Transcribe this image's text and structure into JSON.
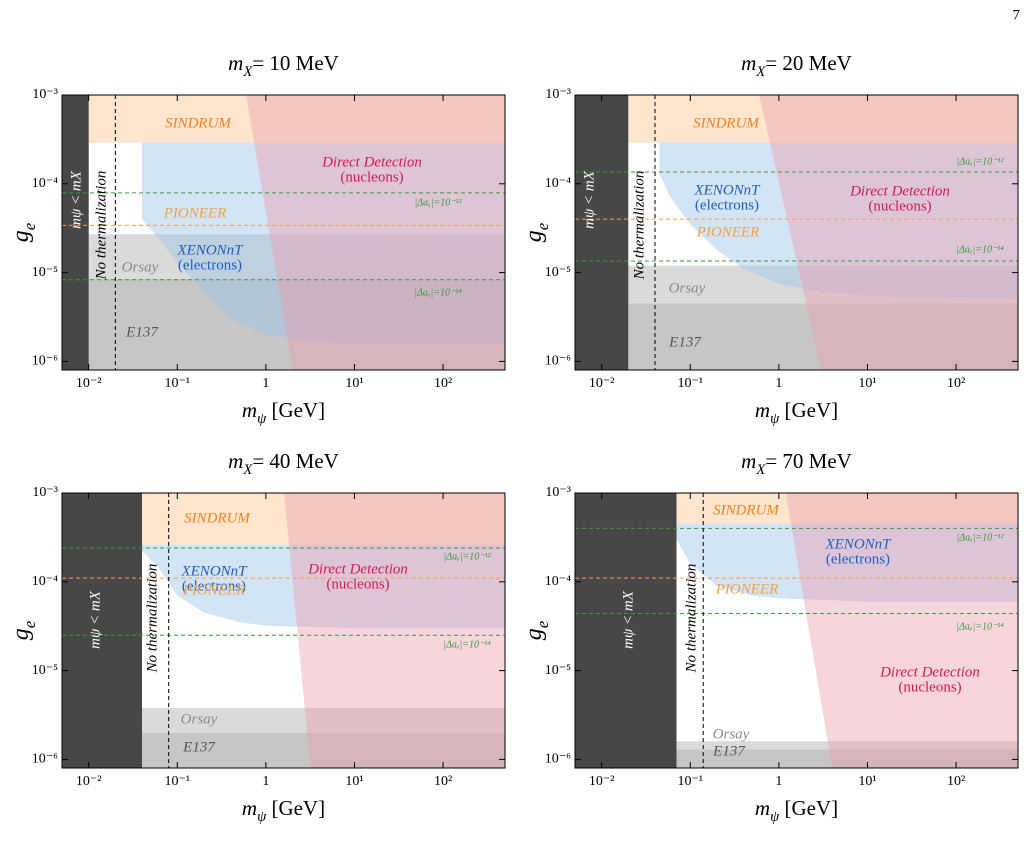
{
  "page_number": "7",
  "chart_data": [
    {
      "type": "area",
      "title": [
        "m",
        "X",
        "= 10 MeV"
      ],
      "xlabel": [
        "m",
        "ψ",
        " [GeV]"
      ],
      "ylabel": [
        "g",
        "e"
      ],
      "xscale": "log",
      "yscale": "log",
      "xlim": [
        0.005,
        500
      ],
      "ylim": [
        8e-07,
        0.001
      ],
      "xticks": [
        {
          "value": 0.01,
          "label": "10⁻²"
        },
        {
          "value": 0.1,
          "label": "10⁻¹"
        },
        1,
        {
          "value": 10,
          "label": "10¹"
        },
        {
          "value": 100,
          "label": "10²"
        }
      ],
      "yticks": [
        {
          "value": 1e-06,
          "label": "10⁻⁶"
        },
        {
          "value": 1e-05,
          "label": "10⁻⁵"
        },
        {
          "value": 0.0001,
          "label": "10⁻⁴"
        },
        {
          "value": 0.001,
          "label": "10⁻³"
        }
      ],
      "regions": [
        {
          "name": "Orsay",
          "color": "#dadada",
          "alpha": 1,
          "text_color": "#8a8a8a",
          "x": [
            0.01,
            500,
            500,
            0.01
          ],
          "y": [
            8.5e-06,
            8.5e-06,
            2.7e-05,
            2.7e-05
          ]
        },
        {
          "name": "E137",
          "color": "#c6c6c6",
          "alpha": 1,
          "text_color": "#555555",
          "x": [
            0.01,
            500,
            500,
            0.01
          ],
          "y": [
            8e-07,
            8e-07,
            8.5e-06,
            8.5e-06
          ]
        },
        {
          "name": "SINDRUM",
          "color": "#fbd3ad",
          "alpha": 0.6,
          "text_color": "#f58220",
          "x": [
            0.01,
            500,
            500,
            0.01
          ],
          "y": [
            0.00029,
            0.00029,
            0.001,
            0.001
          ]
        },
        {
          "name": "XENONnT",
          "note": "(electrons)",
          "color": "#9ec3e6",
          "alpha": 0.45,
          "text_color": "#1f5fbf",
          "x": [
            0.04,
            0.04,
            0.06,
            0.1,
            0.2,
            0.4,
            1,
            3,
            10,
            500,
            500
          ],
          "y": [
            0.00029,
            4e-05,
            2.5e-05,
            1.3e-05,
            6e-06,
            3e-06,
            2e-06,
            1.7e-06,
            1.6e-06,
            1.6e-06,
            0.00029
          ]
        },
        {
          "name": "Direct Detection",
          "note": "(nucleons)",
          "color": "#ec9aae",
          "alpha": 0.42,
          "text_color": "#d11a4e",
          "x": [
            0.6,
            2,
            500,
            500
          ],
          "y": [
            0.001,
            8e-07,
            8e-07,
            0.001
          ]
        },
        {
          "name": "mψ < mX",
          "color": "#333333",
          "alpha": 0.9,
          "text_color": "#ffffff",
          "x": [
            0.005,
            0.01,
            0.01,
            0.005
          ],
          "y": [
            8e-07,
            8e-07,
            0.001,
            0.001
          ]
        }
      ],
      "vlines": [
        {
          "name": "No thermalization",
          "color": "#000000",
          "x": 0.02
        }
      ],
      "hlines": [
        {
          "name": "PIONEER",
          "color": "#f3a04a",
          "y": 3.4e-05
        },
        {
          "name": "|Δaₑ|=10⁻¹²",
          "color": "#3a9a3a",
          "y": 7.9e-05
        },
        {
          "name": "|Δaₑ|=10⁻¹⁴",
          "color": "#3a9a3a",
          "y": 8.3e-06
        }
      ]
    },
    {
      "type": "area",
      "title": [
        "m",
        "X",
        "= 20 MeV"
      ],
      "xlabel": [
        "m",
        "ψ",
        " [GeV]"
      ],
      "ylabel": [
        "g",
        "e"
      ],
      "xscale": "log",
      "yscale": "log",
      "xlim": [
        0.005,
        500
      ],
      "ylim": [
        8e-07,
        0.001
      ],
      "xticks": [
        {
          "value": 0.01,
          "label": "10⁻²"
        },
        {
          "value": 0.1,
          "label": "10⁻¹"
        },
        1,
        {
          "value": 10,
          "label": "10¹"
        },
        {
          "value": 100,
          "label": "10²"
        }
      ],
      "yticks": [
        {
          "value": 1e-06,
          "label": "10⁻⁶"
        },
        {
          "value": 1e-05,
          "label": "10⁻⁵"
        },
        {
          "value": 0.0001,
          "label": "10⁻⁴"
        },
        {
          "value": 0.001,
          "label": "10⁻³"
        }
      ],
      "regions": [
        {
          "name": "Orsay",
          "color": "#dadada",
          "alpha": 1,
          "text_color": "#8a8a8a",
          "x": [
            0.02,
            500,
            500,
            0.02
          ],
          "y": [
            4.5e-06,
            4.5e-06,
            1.2e-05,
            1.2e-05
          ]
        },
        {
          "name": "E137",
          "color": "#c6c6c6",
          "alpha": 1,
          "text_color": "#555555",
          "x": [
            0.02,
            500,
            500,
            0.02
          ],
          "y": [
            8e-07,
            8e-07,
            4.5e-06,
            4.5e-06
          ]
        },
        {
          "name": "SINDRUM",
          "color": "#fbd3ad",
          "alpha": 0.6,
          "text_color": "#f58220",
          "x": [
            0.02,
            500,
            500,
            0.02
          ],
          "y": [
            0.00029,
            0.00029,
            0.001,
            0.001
          ]
        },
        {
          "name": "XENONnT",
          "note": "(electrons)",
          "color": "#9ec3e6",
          "alpha": 0.45,
          "text_color": "#1f5fbf",
          "x": [
            0.045,
            0.045,
            0.06,
            0.1,
            0.2,
            0.4,
            1,
            3,
            10,
            500,
            500
          ],
          "y": [
            0.00029,
            0.00013,
            7e-05,
            3.5e-05,
            1.8e-05,
            1.1e-05,
            7.5e-06,
            6e-06,
            5.5e-06,
            5e-06,
            0.00029
          ]
        },
        {
          "name": "Direct Detection",
          "note": "(nucleons)",
          "color": "#ec9aae",
          "alpha": 0.42,
          "text_color": "#d11a4e",
          "x": [
            0.6,
            3,
            500,
            500
          ],
          "y": [
            0.001,
            8e-07,
            8e-07,
            0.001
          ]
        },
        {
          "name": "mψ < mX",
          "color": "#333333",
          "alpha": 0.9,
          "text_color": "#ffffff",
          "x": [
            0.005,
            0.02,
            0.02,
            0.005
          ],
          "y": [
            8e-07,
            8e-07,
            0.001,
            0.001
          ]
        }
      ],
      "vlines": [
        {
          "name": "No thermalization",
          "color": "#000000",
          "x": 0.04
        }
      ],
      "hlines": [
        {
          "name": "PIONEER",
          "color": "#f3a04a",
          "y": 4e-05
        },
        {
          "name": "|Δaₑ|=10⁻¹²",
          "color": "#3a9a3a",
          "y": 0.000136
        },
        {
          "name": "|Δaₑ|=10⁻¹⁴",
          "color": "#3a9a3a",
          "y": 1.35e-05
        }
      ]
    },
    {
      "type": "area",
      "title": [
        "m",
        "X",
        "= 40 MeV"
      ],
      "xlabel": [
        "m",
        "ψ",
        " [GeV]"
      ],
      "ylabel": [
        "g",
        "e"
      ],
      "xscale": "log",
      "yscale": "log",
      "xlim": [
        0.005,
        500
      ],
      "ylim": [
        8e-07,
        0.001
      ],
      "xticks": [
        {
          "value": 0.01,
          "label": "10⁻²"
        },
        {
          "value": 0.1,
          "label": "10⁻¹"
        },
        1,
        {
          "value": 10,
          "label": "10¹"
        },
        {
          "value": 100,
          "label": "10²"
        }
      ],
      "yticks": [
        {
          "value": 1e-06,
          "label": "10⁻⁶"
        },
        {
          "value": 1e-05,
          "label": "10⁻⁵"
        },
        {
          "value": 0.0001,
          "label": "10⁻⁴"
        },
        {
          "value": 0.001,
          "label": "10⁻³"
        }
      ],
      "regions": [
        {
          "name": "Orsay",
          "color": "#dadada",
          "alpha": 1,
          "text_color": "#8a8a8a",
          "x": [
            0.04,
            500,
            500,
            0.04
          ],
          "y": [
            2e-06,
            2e-06,
            3.8e-06,
            3.8e-06
          ]
        },
        {
          "name": "E137",
          "color": "#c6c6c6",
          "alpha": 1,
          "text_color": "#555555",
          "x": [
            0.04,
            500,
            500,
            0.04
          ],
          "y": [
            8e-07,
            8e-07,
            2e-06,
            2e-06
          ]
        },
        {
          "name": "SINDRUM",
          "color": "#fbd3ad",
          "alpha": 0.6,
          "text_color": "#f58220",
          "x": [
            0.04,
            500,
            500,
            0.04
          ],
          "y": [
            0.00026,
            0.00026,
            0.001,
            0.001
          ]
        },
        {
          "name": "XENONnT",
          "note": "(electrons)",
          "color": "#9ec3e6",
          "alpha": 0.45,
          "text_color": "#1f5fbf",
          "x": [
            0.04,
            0.04,
            0.06,
            0.1,
            0.2,
            0.5,
            1,
            10,
            500,
            500
          ],
          "y": [
            0.00026,
            0.00022,
            0.00015,
            7e-05,
            4.5e-05,
            3.5e-05,
            3.2e-05,
            3e-05,
            3e-05,
            0.00026
          ]
        },
        {
          "name": "Direct Detection",
          "note": "(nucleons)",
          "color": "#ec9aae",
          "alpha": 0.42,
          "text_color": "#d11a4e",
          "x": [
            1.6,
            3.2,
            500,
            500
          ],
          "y": [
            0.001,
            8e-07,
            8e-07,
            0.001
          ]
        },
        {
          "name": "mψ < mX",
          "color": "#333333",
          "alpha": 0.9,
          "text_color": "#ffffff",
          "x": [
            0.005,
            0.04,
            0.04,
            0.005
          ],
          "y": [
            8e-07,
            8e-07,
            0.001,
            0.001
          ]
        }
      ],
      "vlines": [
        {
          "name": "No thermalization",
          "color": "#000000",
          "x": 0.08
        }
      ],
      "hlines": [
        {
          "name": "PIONEER",
          "color": "#f3a04a",
          "y": 0.00011
        },
        {
          "name": "|Δaₑ|=10⁻¹²",
          "color": "#3a9a3a",
          "y": 0.00024
        },
        {
          "name": "|Δaₑ|=10⁻¹⁴",
          "color": "#3a9a3a",
          "y": 2.5e-05
        }
      ]
    },
    {
      "type": "area",
      "title": [
        "m",
        "X",
        "= 70 MeV"
      ],
      "xlabel": [
        "m",
        "ψ",
        " [GeV]"
      ],
      "ylabel": [
        "g",
        "e"
      ],
      "xscale": "log",
      "yscale": "log",
      "xlim": [
        0.005,
        500
      ],
      "ylim": [
        8e-07,
        0.001
      ],
      "xticks": [
        {
          "value": 0.01,
          "label": "10⁻²"
        },
        {
          "value": 0.1,
          "label": "10⁻¹"
        },
        1,
        {
          "value": 10,
          "label": "10¹"
        },
        {
          "value": 100,
          "label": "10²"
        }
      ],
      "yticks": [
        {
          "value": 1e-06,
          "label": "10⁻⁶"
        },
        {
          "value": 1e-05,
          "label": "10⁻⁵"
        },
        {
          "value": 0.0001,
          "label": "10⁻⁴"
        },
        {
          "value": 0.001,
          "label": "10⁻³"
        }
      ],
      "regions": [
        {
          "name": "Orsay",
          "color": "#dadada",
          "alpha": 1,
          "text_color": "#8a8a8a",
          "x": [
            0.07,
            500,
            500,
            0.07
          ],
          "y": [
            1.3e-06,
            1.3e-06,
            1.6e-06,
            1.6e-06
          ]
        },
        {
          "name": "E137",
          "color": "#c6c6c6",
          "alpha": 1,
          "text_color": "#555555",
          "x": [
            0.07,
            500,
            500,
            0.07
          ],
          "y": [
            8e-07,
            8e-07,
            1.3e-06,
            1.3e-06
          ]
        },
        {
          "name": "SINDRUM",
          "color": "#fbd3ad",
          "alpha": 0.6,
          "text_color": "#f58220",
          "x": [
            0.07,
            500,
            500,
            0.07
          ],
          "y": [
            0.00045,
            0.00045,
            0.001,
            0.001
          ]
        },
        {
          "name": "XENONnT",
          "note": "(electrons)",
          "color": "#9ec3e6",
          "alpha": 0.45,
          "text_color": "#1f5fbf",
          "x": [
            0.07,
            0.07,
            0.1,
            0.2,
            0.5,
            1,
            10,
            500,
            500
          ],
          "y": [
            0.00045,
            0.0003,
            0.00016,
            9e-05,
            7e-05,
            6.5e-05,
            6e-05,
            6e-05,
            0.00045
          ]
        },
        {
          "name": "Direct Detection",
          "note": "(nucleons)",
          "color": "#ec9aae",
          "alpha": 0.42,
          "text_color": "#d11a4e",
          "x": [
            1.2,
            4,
            500,
            500
          ],
          "y": [
            0.001,
            8e-07,
            8e-07,
            0.001
          ]
        },
        {
          "name": "mψ < mX",
          "color": "#333333",
          "alpha": 0.9,
          "text_color": "#ffffff",
          "x": [
            0.005,
            0.07,
            0.07,
            0.005
          ],
          "y": [
            8e-07,
            8e-07,
            0.001,
            0.001
          ]
        }
      ],
      "vlines": [
        {
          "name": "No thermalization",
          "color": "#000000",
          "x": 0.14
        }
      ],
      "hlines": [
        {
          "name": "PIONEER",
          "color": "#f3a04a",
          "y": 0.00011
        },
        {
          "name": "|Δaₑ|=10⁻¹²",
          "color": "#3a9a3a",
          "y": 0.0004
        },
        {
          "name": "|Δaₑ|=10⁻¹⁴",
          "color": "#3a9a3a",
          "y": 4.4e-05
        }
      ]
    }
  ]
}
